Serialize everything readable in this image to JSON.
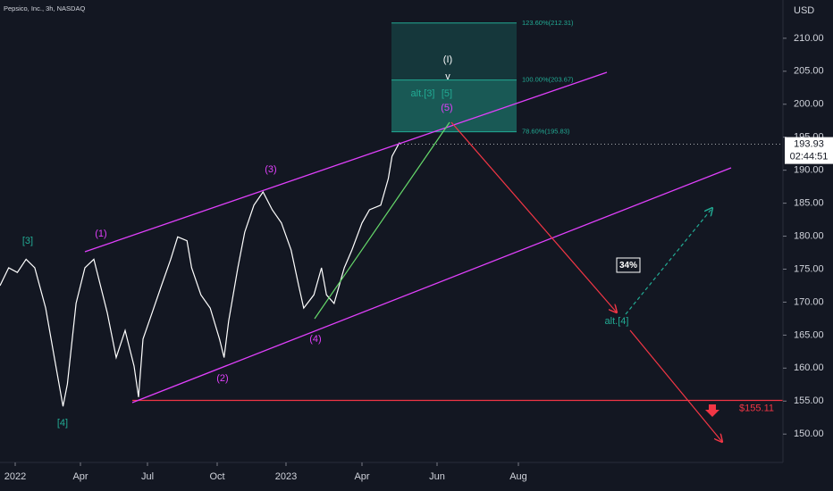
{
  "header": {
    "title": "Pepsico, Inc., 3h, NASDAQ",
    "currency": "USD"
  },
  "chart_data": {
    "type": "line",
    "x": [
      -0.7,
      -0.3,
      0.1,
      0.5,
      0.9,
      1.4,
      1.8,
      2.2,
      2.4,
      2.8,
      3.2,
      3.6,
      3.8,
      4.2,
      4.6,
      5.0,
      5.4,
      5.6,
      5.8,
      6.2,
      6.6,
      7.0,
      7.3,
      7.7,
      7.9,
      8.3,
      8.7,
      9.1,
      9.3,
      9.5,
      9.9,
      10.2,
      10.6,
      11.0,
      11.4,
      11.8,
      12.2,
      12.5,
      12.7,
      13.1,
      13.4,
      13.6,
      13.9,
      14.3,
      14.6,
      15.0,
      15.2,
      15.5,
      15.7,
      15.8,
      16.0
    ],
    "series": [
      {
        "color": "#ffffff",
        "values": [
          172.5,
          175.2,
          174.5,
          176.5,
          175.2,
          169.1,
          161.6,
          154.2,
          157.6,
          169.8,
          175.2,
          176.5,
          173.8,
          168.4,
          161.6,
          165.7,
          160.3,
          155.6,
          164.4,
          168.4,
          172.5,
          176.5,
          179.9,
          179.3,
          175.2,
          171.1,
          169.1,
          164.4,
          161.6,
          167.1,
          175.2,
          180.6,
          184.7,
          186.7,
          184.0,
          182.0,
          177.9,
          172.5,
          169.1,
          171.1,
          175.2,
          171.1,
          169.8,
          175.2,
          177.9,
          182.0,
          184.0,
          184.7,
          188.7,
          192.1,
          194.2
        ]
      }
    ],
    "xlim": [
      -0.7,
      25.5
    ],
    "xticks": [
      {
        "value": 0,
        "label": "2022"
      },
      {
        "value": 3,
        "label": "Apr"
      },
      {
        "value": 6,
        "label": "Jul"
      },
      {
        "value": 9,
        "label": "Oct"
      },
      {
        "value": 12,
        "label": "2023"
      },
      {
        "value": 15,
        "label": "Apr"
      },
      {
        "value": 17,
        "label": "Jun"
      },
      {
        "value": 19,
        "label": "Aug"
      }
    ],
    "ylim": [
      145.7,
      215.8
    ],
    "yticks": [
      {
        "value": 150,
        "label": "150.00"
      },
      {
        "value": 155,
        "label": "155.00"
      },
      {
        "value": 160,
        "label": "160.00"
      },
      {
        "value": 165,
        "label": "165.00"
      },
      {
        "value": 170,
        "label": "170.00"
      },
      {
        "value": 175,
        "label": "175.00"
      },
      {
        "value": 180,
        "label": "180.00"
      },
      {
        "value": 185,
        "label": "185.00"
      },
      {
        "value": 190,
        "label": "190.00"
      },
      {
        "value": 195,
        "label": "195.00"
      },
      {
        "value": 200,
        "label": "200.00"
      },
      {
        "value": 205,
        "label": "205.00"
      },
      {
        "value": 210,
        "label": "210.00"
      }
    ],
    "last_price": 193.93,
    "countdown": "02:44:51",
    "fib_levels": [
      {
        "value": 212.31,
        "label": "123.60%(212.31)"
      },
      {
        "value": 203.67,
        "label": "100.00%(203.67)"
      },
      {
        "value": 195.83,
        "label": "78.60%(195.83)"
      }
    ],
    "target": {
      "value": 155.11,
      "label": "$155.11"
    },
    "wave_labels": [
      "[3]",
      "(1)",
      "[4]",
      "(2)",
      "(3)",
      "(4)",
      "(5)",
      "(I)",
      "v",
      "alt.[3]",
      "[5]",
      "alt.[4]"
    ],
    "probability": "34%"
  }
}
